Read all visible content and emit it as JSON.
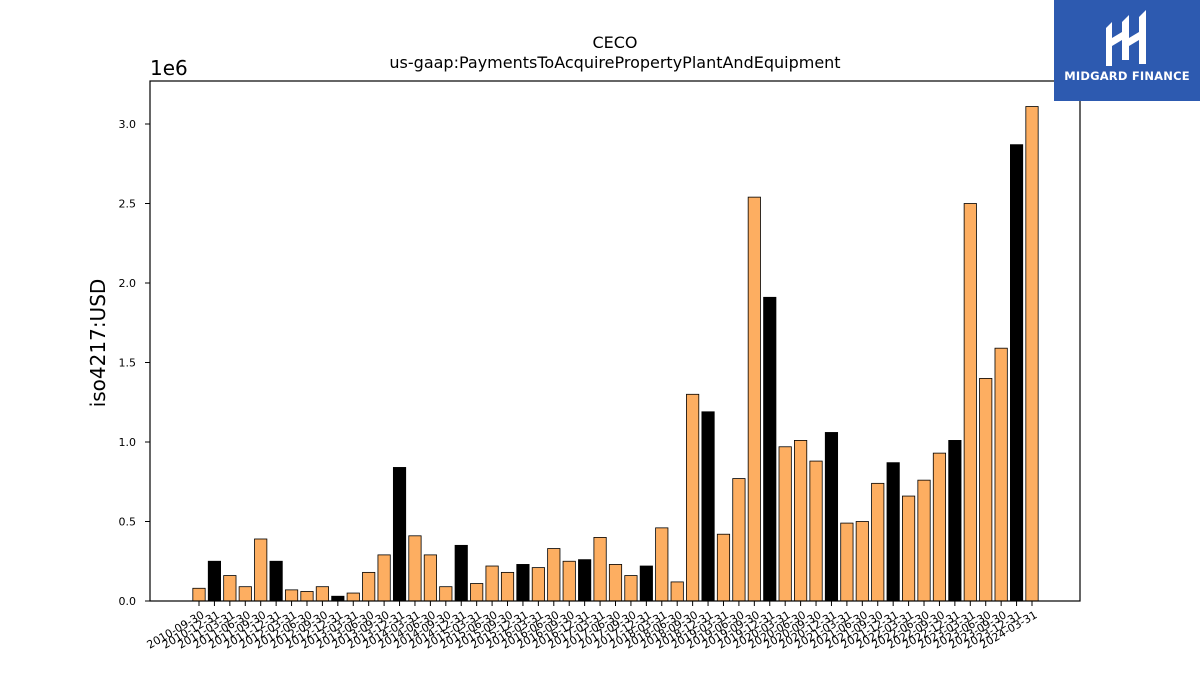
{
  "chart_data": {
    "type": "bar",
    "title": "CECO",
    "subtitle": "us-gaap:PaymentsToAcquirePropertyPlantAndEquipment",
    "ylabel": "iso4217:USD",
    "y_multiplier_label": "1e6",
    "xlabel": "",
    "ylim": [
      0,
      3.28
    ],
    "y_ticks": [
      0.0,
      0.5,
      1.0,
      1.5,
      2.0,
      2.5,
      3.0
    ],
    "y_tick_labels": [
      "0.0",
      "0.5",
      "1.0",
      "1.5",
      "2.0",
      "2.5",
      "3.0"
    ],
    "grid": false,
    "legend": "none",
    "colors": {
      "quarter": "#fdae61",
      "annual": "#000000",
      "edge": "#000000"
    },
    "categories": [
      "2010-09-30",
      "2010-12-31",
      "2011-03-31",
      "2011-06-30",
      "2011-09-30",
      "2011-12-31",
      "2012-03-31",
      "2012-06-30",
      "2012-09-30",
      "2012-12-31",
      "2013-03-31",
      "2013-06-30",
      "2013-09-30",
      "2013-12-31",
      "2014-03-31",
      "2014-06-30",
      "2014-09-30",
      "2014-12-31",
      "2015-03-31",
      "2015-06-30",
      "2015-09-30",
      "2015-12-31",
      "2016-03-31",
      "2016-06-30",
      "2016-09-30",
      "2016-12-31",
      "2017-03-31",
      "2017-06-30",
      "2017-09-30",
      "2017-12-31",
      "2018-03-31",
      "2018-06-30",
      "2018-09-30",
      "2018-12-31",
      "2019-03-31",
      "2019-06-30",
      "2019-09-30",
      "2019-12-31",
      "2020-03-31",
      "2020-06-30",
      "2020-09-30",
      "2020-12-31",
      "2021-03-31",
      "2021-06-30",
      "2021-09-30",
      "2021-12-31",
      "2022-03-31",
      "2022-06-30",
      "2022-09-30",
      "2022-12-31",
      "2023-03-31",
      "2023-06-30",
      "2023-09-30",
      "2023-12-31",
      "2024-03-31"
    ],
    "values": [
      0.08,
      0.25,
      0.16,
      0.09,
      0.39,
      0.25,
      0.07,
      0.06,
      0.09,
      0.03,
      0.05,
      0.18,
      0.29,
      0.84,
      0.41,
      0.29,
      0.09,
      0.35,
      0.11,
      0.22,
      0.18,
      0.23,
      0.21,
      0.33,
      0.25,
      0.26,
      0.4,
      0.23,
      0.16,
      0.22,
      0.46,
      0.12,
      1.3,
      1.19,
      0.42,
      0.77,
      2.54,
      1.91,
      0.97,
      1.01,
      0.88,
      1.06,
      0.49,
      0.5,
      0.74,
      0.87,
      0.66,
      0.76,
      0.93,
      1.01,
      2.5,
      1.4,
      1.59,
      2.87,
      3.11
    ],
    "annual": [
      false,
      true,
      false,
      false,
      false,
      true,
      false,
      false,
      false,
      true,
      false,
      false,
      false,
      true,
      false,
      false,
      false,
      true,
      false,
      false,
      false,
      true,
      false,
      false,
      false,
      true,
      false,
      false,
      false,
      true,
      false,
      false,
      false,
      true,
      false,
      false,
      false,
      true,
      false,
      false,
      false,
      true,
      false,
      false,
      false,
      true,
      false,
      false,
      false,
      true,
      false,
      false,
      false,
      true,
      false
    ]
  },
  "brand": {
    "name": "MIDGARD FINANCE",
    "logo_icon": "midgard-logo-icon"
  }
}
